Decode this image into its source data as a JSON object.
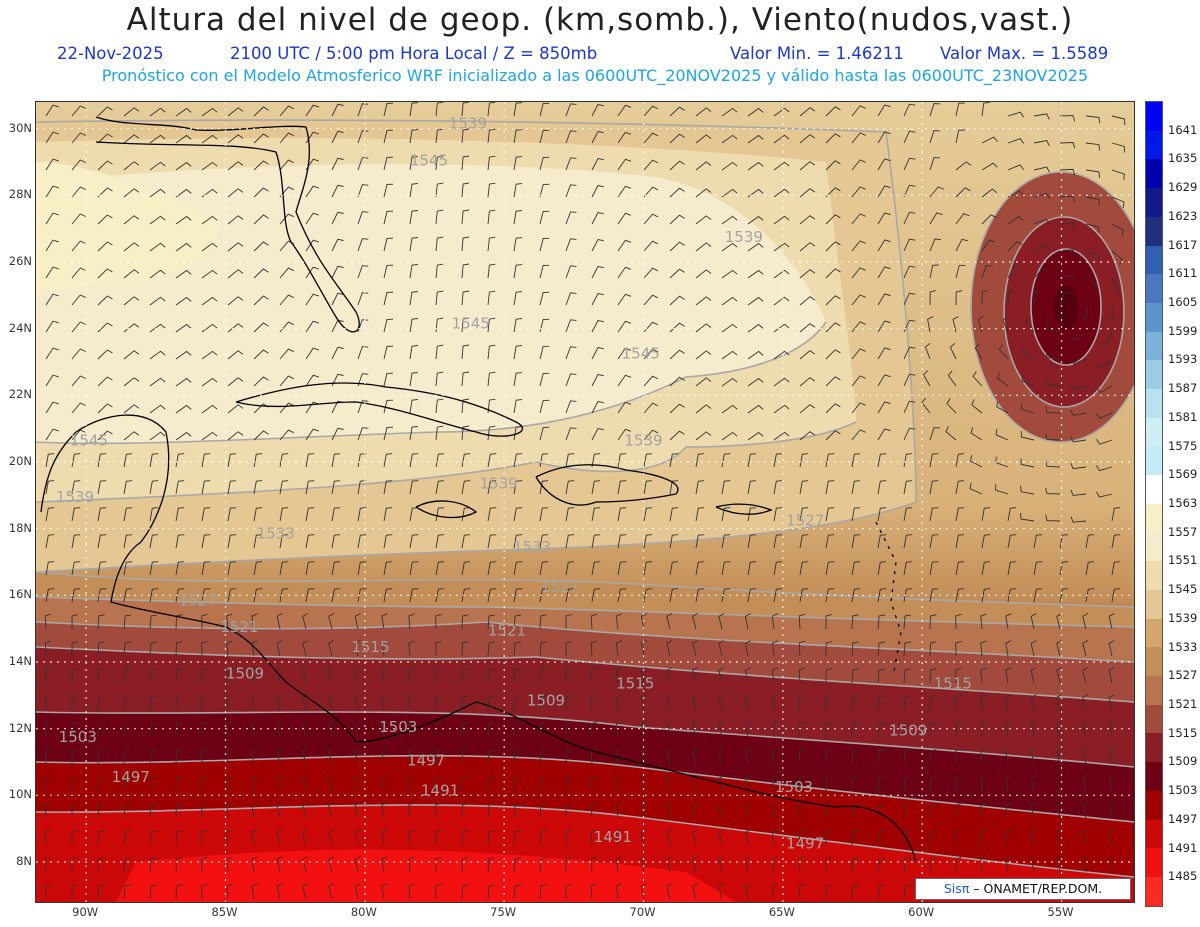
{
  "header": {
    "title": "Altura del nivel de geop. (km,somb.), Viento(nudos,vast.)",
    "date": "22-Nov-2025",
    "time": "2100 UTC / 5:00 pm Hora Local / Z = 850mb",
    "min_value": "Valor Min. = 1.46211",
    "max_value": "Valor Max. = 1.5589",
    "model_info": "Pronóstico con el Modelo Atmosferico WRF inicializado a las 0600UTC_20NOV2025 y válido hasta las  0600UTC_23NOV2025"
  },
  "map": {
    "lat_labels": [
      "30N",
      "28N",
      "26N",
      "24N",
      "22N",
      "20N",
      "18N",
      "16N",
      "14N",
      "12N",
      "10N",
      "8N"
    ],
    "lon_labels": [
      "90W",
      "85W",
      "80W",
      "75W",
      "70W",
      "65W",
      "60W",
      "55W"
    ],
    "lat_values": [
      30,
      28,
      26,
      24,
      22,
      20,
      18,
      16,
      14,
      12,
      10,
      8
    ],
    "lon_values": [
      -90,
      -85,
      -80,
      -75,
      -70,
      -65,
      -60,
      -55
    ],
    "extent": {
      "lon_min": -91.8,
      "lon_max": -52.4,
      "lat_min": 6.8,
      "lat_max": 30.8
    },
    "contour_labels": [
      {
        "text": "1539",
        "lon": -76.3,
        "lat": 30.0
      },
      {
        "text": "1545",
        "lon": -77.7,
        "lat": 28.9
      },
      {
        "text": "1539",
        "lon": -66.4,
        "lat": 26.6
      },
      {
        "text": "1545",
        "lon": -76.2,
        "lat": 24.0
      },
      {
        "text": "1545",
        "lon": -70.1,
        "lat": 23.1
      },
      {
        "text": "1545",
        "lon": -89.9,
        "lat": 20.5
      },
      {
        "text": "1539",
        "lon": -70.0,
        "lat": 20.5
      },
      {
        "text": "1539",
        "lon": -75.2,
        "lat": 19.2
      },
      {
        "text": "1539",
        "lon": -90.4,
        "lat": 18.8
      },
      {
        "text": "1533",
        "lon": -83.2,
        "lat": 17.7
      },
      {
        "text": "1533",
        "lon": -74.0,
        "lat": 17.3
      },
      {
        "text": "1527",
        "lon": -64.2,
        "lat": 18.1
      },
      {
        "text": "1527",
        "lon": -73.0,
        "lat": 16.1
      },
      {
        "text": "1527",
        "lon": -86.0,
        "lat": 15.7
      },
      {
        "text": "1521",
        "lon": -84.5,
        "lat": 14.9
      },
      {
        "text": "1521",
        "lon": -74.9,
        "lat": 14.8
      },
      {
        "text": "1515",
        "lon": -79.8,
        "lat": 14.3
      },
      {
        "text": "1509",
        "lon": -84.3,
        "lat": 13.5
      },
      {
        "text": "1515",
        "lon": -70.3,
        "lat": 13.2
      },
      {
        "text": "1515",
        "lon": -58.9,
        "lat": 13.2
      },
      {
        "text": "1509",
        "lon": -73.5,
        "lat": 12.7
      },
      {
        "text": "1503",
        "lon": -78.8,
        "lat": 11.9
      },
      {
        "text": "1509",
        "lon": -60.5,
        "lat": 11.8
      },
      {
        "text": "1503",
        "lon": -90.3,
        "lat": 11.6
      },
      {
        "text": "1497",
        "lon": -77.8,
        "lat": 10.9
      },
      {
        "text": "1497",
        "lon": -88.4,
        "lat": 10.4
      },
      {
        "text": "1491",
        "lon": -77.3,
        "lat": 10.0
      },
      {
        "text": "1503",
        "lon": -64.6,
        "lat": 10.1
      },
      {
        "text": "1491",
        "lon": -71.1,
        "lat": 8.6
      },
      {
        "text": "1497",
        "lon": -64.2,
        "lat": 8.4
      }
    ]
  },
  "colorbar": {
    "labels": [
      "1641",
      "1635",
      "1629",
      "1623",
      "1617",
      "1611",
      "1605",
      "1599",
      "1593",
      "1587",
      "1581",
      "1575",
      "1569",
      "1563",
      "1557",
      "1551",
      "1545",
      "1539",
      "1533",
      "1527",
      "1521",
      "1515",
      "1509",
      "1503",
      "1497",
      "1491",
      "1485"
    ],
    "colors": [
      "#0000ff",
      "#0018e8",
      "#0000b0",
      "#10188c",
      "#20307f",
      "#3060b0",
      "#4a78c0",
      "#5c94cc",
      "#7ab2dc",
      "#9ccce6",
      "#b8e2f0",
      "#d0eef6",
      "#c4ecf6",
      "#ffffff",
      "#f8efc6",
      "#f6ebcc",
      "#efdcae",
      "#e4c792",
      "#d2a66c",
      "#c48e58",
      "#b8744e",
      "#a24b3c",
      "#8a1e24",
      "#6e0014",
      "#a00000",
      "#cc0808",
      "#f21010",
      "#ff2a22"
    ]
  },
  "credit": {
    "logo": "Sisπ",
    "text": "– ONAMET/REP.DOM."
  }
}
